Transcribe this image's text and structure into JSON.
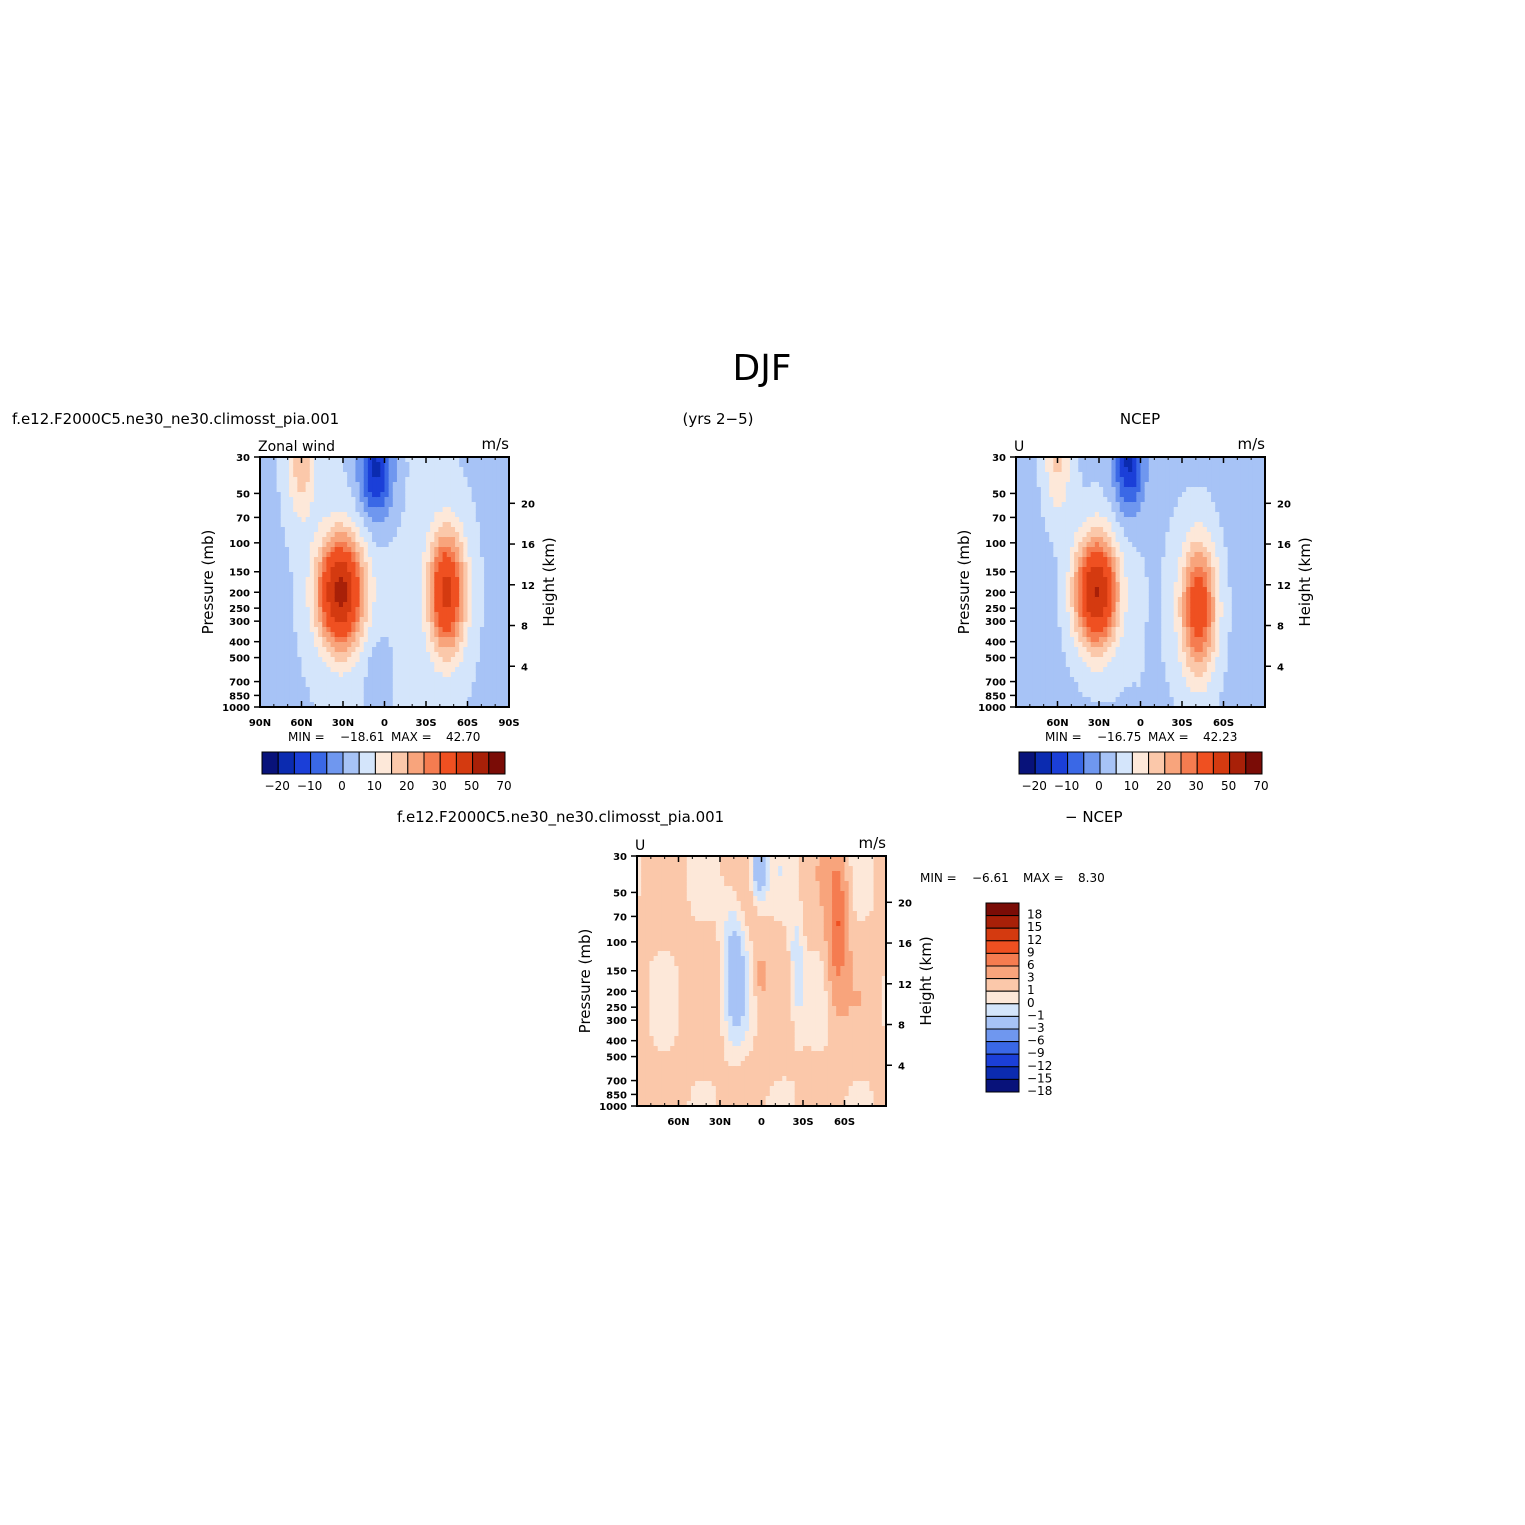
{
  "figure": {
    "title": "DJF",
    "left_header": "f.e12.F2000C5.ne30_ne30.climosst_pia.001",
    "center_header": "(yrs 2−5)",
    "right_header": "NCEP",
    "bottom_header": "f.e12.F2000C5.ne30_ne30.climosst_pia.001",
    "bottom_header_suffix": "− NCEP"
  },
  "chart_data": [
    {
      "type": "heatmap",
      "panel": "model",
      "left_string": "Zonal wind",
      "right_string": "m/s",
      "ylabel": "Pressure (mb)",
      "ylabel_right": "Height (km)",
      "x_ticks": [
        "90N",
        "60N",
        "30N",
        "0",
        "30S",
        "60S",
        "90S"
      ],
      "xlim": [
        90,
        -90
      ],
      "y_ticks": [
        "30",
        "50",
        "70",
        "100",
        "150",
        "200",
        "250",
        "300",
        "400",
        "500",
        "700",
        "850",
        "1000"
      ],
      "y_right_ticks": [
        "4",
        "8",
        "12",
        "16",
        "20"
      ],
      "ylim_mb": [
        1000,
        30
      ],
      "yscale": "log",
      "stats": {
        "min_label": "MIN =",
        "min": "−18.61",
        "max_label": "MAX =",
        "max": "42.70"
      },
      "colorbar_labels": [
        "−20",
        "−10",
        "0",
        "10",
        "20",
        "30",
        "50",
        "70"
      ],
      "features": [
        {
          "kind": "westerly_jet",
          "lat": 30,
          "pressure_mb": 200,
          "peak": 42.7
        },
        {
          "kind": "westerly_jet",
          "lat": -45,
          "pressure_mb": 200,
          "peak": 35
        },
        {
          "kind": "easterlies",
          "lat": 8,
          "pressure_mb": 40,
          "peak": -18.61
        }
      ]
    },
    {
      "type": "heatmap",
      "panel": "ncep",
      "left_string": "U",
      "right_string": "m/s",
      "ylabel": "Pressure (mb)",
      "ylabel_right": "Height (km)",
      "x_ticks": [
        "60N",
        "30N",
        "0",
        "30S",
        "60S"
      ],
      "xlim": [
        90,
        -90
      ],
      "y_ticks": [
        "30",
        "50",
        "70",
        "100",
        "150",
        "200",
        "250",
        "300",
        "400",
        "500",
        "700",
        "850",
        "1000"
      ],
      "y_right_ticks": [
        "4",
        "8",
        "12",
        "16",
        "20"
      ],
      "ylim_mb": [
        1000,
        30
      ],
      "yscale": "log",
      "stats": {
        "min_label": "MIN =",
        "min": "−16.75",
        "max_label": "MAX =",
        "max": "42.23"
      },
      "colorbar_labels": [
        "−20",
        "−10",
        "0",
        "10",
        "20",
        "30",
        "50",
        "70"
      ],
      "features": [
        {
          "kind": "westerly_jet",
          "lat": 30,
          "pressure_mb": 200,
          "peak": 42.23
        },
        {
          "kind": "westerly_jet",
          "lat": -45,
          "pressure_mb": 250,
          "peak": 32
        },
        {
          "kind": "easterlies",
          "lat": 8,
          "pressure_mb": 35,
          "peak": -16.75
        }
      ]
    },
    {
      "type": "heatmap",
      "panel": "difference",
      "left_string": "U",
      "right_string": "m/s",
      "ylabel": "Pressure (mb)",
      "ylabel_right": "Height (km)",
      "x_ticks": [
        "60N",
        "30N",
        "0",
        "30S",
        "60S"
      ],
      "xlim": [
        90,
        -90
      ],
      "y_ticks": [
        "30",
        "50",
        "70",
        "100",
        "150",
        "200",
        "250",
        "300",
        "400",
        "500",
        "700",
        "850",
        "1000"
      ],
      "y_right_ticks": [
        "4",
        "8",
        "12",
        "16",
        "20"
      ],
      "ylim_mb": [
        1000,
        30
      ],
      "yscale": "log",
      "stats": {
        "min_label": "MIN =",
        "min": "−6.61",
        "max_label": "MAX =",
        "max": "8.30"
      },
      "colorbar_labels": [
        "18",
        "15",
        "12",
        "9",
        "6",
        "3",
        "1",
        "0",
        "−1",
        "−3",
        "−6",
        "−9",
        "−12",
        "−15",
        "−18"
      ],
      "features": [
        {
          "kind": "positive",
          "lat": -55,
          "pressure_mb": 80,
          "peak": 8.3
        },
        {
          "kind": "negative",
          "lat": 0,
          "pressure_mb": 40,
          "peak": -6.61
        }
      ]
    }
  ],
  "colors": {
    "main_palette": [
      "#08127a",
      "#0b2bb0",
      "#1b3fd8",
      "#3a68e6",
      "#6f97ef",
      "#a7c3f6",
      "#d4e5fb",
      "#fde8d9",
      "#fbc8aa",
      "#f8a47c",
      "#f57c50",
      "#ef5021",
      "#d43a10",
      "#a82008",
      "#7a0c06"
    ],
    "diff_palette": [
      "#08127a",
      "#0b2bb0",
      "#1b3fd8",
      "#3a68e6",
      "#6f97ef",
      "#a7c3f6",
      "#d4e5fb",
      "#fde8d9",
      "#fbc8aa",
      "#f8a47c",
      "#f57c50",
      "#ef5021",
      "#d43a10",
      "#a82008",
      "#7a0c06"
    ]
  }
}
